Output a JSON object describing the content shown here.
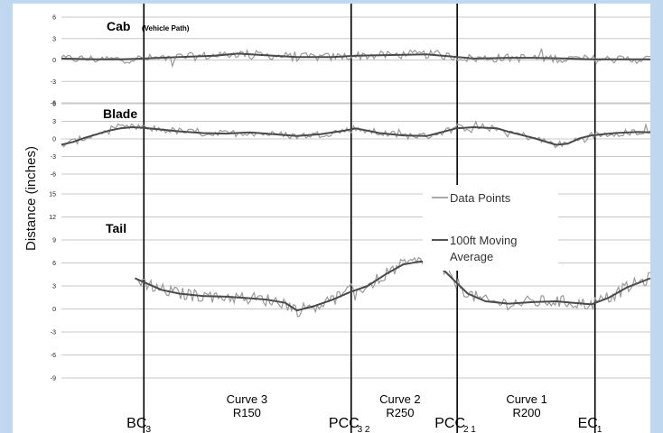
{
  "chart_data": {
    "type": "line",
    "ylabel": "Distance (inches)",
    "grid": true,
    "legend": {
      "placement": "center-right of Tail panel",
      "entries": [
        "Data Points",
        "100ft Moving",
        "Average"
      ]
    },
    "x_domain": [
      0,
      100
    ],
    "markers": [
      {
        "id": "bc3",
        "x": 14,
        "main": "BC",
        "sub": "3"
      },
      {
        "id": "pcc32",
        "x": 49.2,
        "main": "PCC",
        "sub": "3 2"
      },
      {
        "id": "pcc21",
        "x": 67.2,
        "main": "PCC",
        "sub": "2 1"
      },
      {
        "id": "ec1",
        "x": 90.6,
        "main": "EC",
        "sub": "1"
      }
    ],
    "curves": [
      {
        "id": "curve3",
        "x": 31.5,
        "line1": "Curve 3",
        "line2": "R150"
      },
      {
        "id": "curve2",
        "x": 57.5,
        "line1": "Curve 2",
        "line2": "R250"
      },
      {
        "id": "curve1",
        "x": 79,
        "line1": "Curve 1",
        "line2": "R200"
      }
    ],
    "panels": [
      {
        "id": "cab",
        "title": "Cab",
        "subtitle": "(Vehicle Path)",
        "ylim": [
          -6,
          6
        ],
        "yticks": [
          6,
          3,
          0,
          -3,
          -6
        ],
        "series": [
          {
            "name": "100ft Moving Average",
            "x": [
              0,
              6,
              10,
              14,
              20,
              26,
              30,
              34,
              40,
              46,
              50,
              56,
              62,
              66,
              70,
              76,
              80,
              86,
              90,
              96,
              100
            ],
            "y": [
              0.2,
              0.1,
              0.1,
              0.2,
              0.4,
              0.6,
              0.9,
              0.7,
              0.4,
              0.4,
              0.6,
              0.7,
              0.8,
              0.5,
              0.2,
              0.3,
              0.3,
              0.2,
              0.1,
              0.1,
              0.1
            ]
          }
        ]
      },
      {
        "id": "blade",
        "title": "Blade",
        "subtitle": "",
        "ylim": [
          -6,
          6
        ],
        "yticks": [
          6,
          3,
          0,
          -3,
          -6
        ],
        "series": [
          {
            "name": "100ft Moving Average",
            "x": [
              0,
              2,
              4,
              6,
              8,
              10,
              12,
              14,
              17,
              20,
              24,
              28,
              32,
              36,
              40,
              44,
              48,
              50,
              54,
              58,
              62,
              64,
              67,
              70,
              74,
              76,
              80,
              84,
              86,
              88,
              90,
              94,
              98,
              100
            ],
            "y": [
              -1.0,
              -0.5,
              0.2,
              0.8,
              1.4,
              1.8,
              2.0,
              1.9,
              1.6,
              1.3,
              1.0,
              0.9,
              1.1,
              0.8,
              0.5,
              0.8,
              1.4,
              1.8,
              1.0,
              0.6,
              0.5,
              1.0,
              1.8,
              2.0,
              1.8,
              1.2,
              0.2,
              -1.0,
              -0.8,
              0.1,
              0.6,
              1.0,
              1.2,
              1.1
            ]
          }
        ]
      },
      {
        "id": "tail",
        "title": "Tail",
        "subtitle": "",
        "ylim": [
          -9,
          15
        ],
        "yticks": [
          15,
          12,
          9,
          6,
          3,
          0,
          -3,
          -6,
          -9
        ],
        "series": [
          {
            "name": "100ft Moving Average",
            "x": [
              12.5,
              14,
              17,
              20,
              24,
              28,
              32,
              35,
              38,
              40,
              43,
              46,
              49,
              52,
              55,
              58,
              61,
              63,
              65,
              67,
              69,
              72,
              76,
              80,
              84,
              87,
              90,
              93,
              96,
              100
            ],
            "y": [
              4.0,
              3.5,
              2.5,
              2.0,
              1.7,
              1.6,
              1.4,
              1.2,
              0.8,
              -0.2,
              0.4,
              1.2,
              2.2,
              3.0,
              4.5,
              5.8,
              6.2,
              6.0,
              5.0,
              3.5,
              2.0,
              1.0,
              0.7,
              0.9,
              1.0,
              0.8,
              0.6,
              1.5,
              2.8,
              4.0
            ]
          }
        ]
      }
    ]
  }
}
